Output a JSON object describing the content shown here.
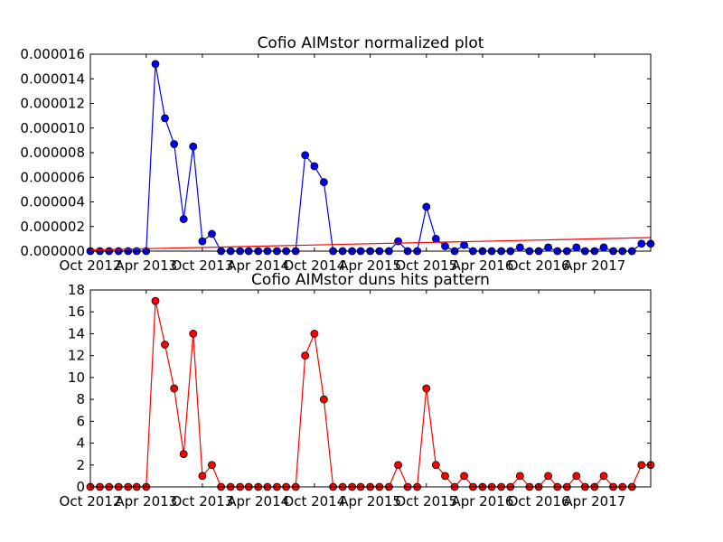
{
  "chart_data": [
    {
      "type": "line",
      "title": "Cofio AIMstor normalized plot",
      "xlabel": "",
      "ylabel": "",
      "x": [
        "2012-10-01",
        "2012-11-01",
        "2012-12-01",
        "2013-01-01",
        "2013-02-01",
        "2013-03-01",
        "2013-04-01",
        "2013-05-01",
        "2013-06-01",
        "2013-07-01",
        "2013-08-01",
        "2013-09-01",
        "2013-10-01",
        "2013-11-01",
        "2013-12-01",
        "2014-01-01",
        "2014-02-01",
        "2014-03-01",
        "2014-04-01",
        "2014-05-01",
        "2014-06-01",
        "2014-07-01",
        "2014-08-01",
        "2014-09-01",
        "2014-10-01",
        "2014-11-01",
        "2014-12-01",
        "2015-01-01",
        "2015-02-01",
        "2015-03-01",
        "2015-04-01",
        "2015-05-01",
        "2015-06-01",
        "2015-07-01",
        "2015-08-01",
        "2015-09-01",
        "2015-10-01",
        "2015-11-01",
        "2015-12-01",
        "2016-01-01",
        "2016-02-01",
        "2016-03-01",
        "2016-04-01",
        "2016-05-01",
        "2016-06-01",
        "2016-07-01",
        "2016-08-01",
        "2016-09-01",
        "2016-10-01",
        "2016-11-01",
        "2016-12-01",
        "2017-01-01",
        "2017-02-01",
        "2017-03-01",
        "2017-04-01",
        "2017-05-01",
        "2017-06-01",
        "2017-07-01",
        "2017-08-01",
        "2017-09-01",
        "2017-10-01"
      ],
      "xlim": [
        "2012-10-01",
        "2017-10-01"
      ],
      "ylim": [
        0,
        1.6e-05
      ],
      "y_ticks": [
        "0.000000",
        "0.000002",
        "0.000004",
        "0.000006",
        "0.000008",
        "0.000010",
        "0.000012",
        "0.000014",
        "0.000016"
      ],
      "x_ticks": [
        {
          "date": "2012-10-01",
          "label": "Oct 2012"
        },
        {
          "date": "2013-04-01",
          "label": "Apr 2013"
        },
        {
          "date": "2013-10-01",
          "label": "Oct 2013"
        },
        {
          "date": "2014-04-01",
          "label": "Apr 2014"
        },
        {
          "date": "2014-10-01",
          "label": "Oct 2014"
        },
        {
          "date": "2015-04-01",
          "label": "Apr 2015"
        },
        {
          "date": "2015-10-01",
          "label": "Oct 2015"
        },
        {
          "date": "2016-04-01",
          "label": "Apr 2016"
        },
        {
          "date": "2016-10-01",
          "label": "Oct 2016"
        },
        {
          "date": "2017-04-01",
          "label": "Apr 2017"
        }
      ],
      "grid": false,
      "series": [
        {
          "color": "#0000ff",
          "marker": "circle",
          "values": [
            0,
            0,
            0,
            0,
            0,
            0,
            0,
            1.52e-05,
            1.08e-05,
            8.7e-06,
            2.6e-06,
            8.5e-06,
            8e-07,
            1.4e-06,
            0,
            0,
            0,
            0,
            0,
            0,
            0,
            0,
            0,
            7.8e-06,
            6.9e-06,
            5.6e-06,
            0,
            0,
            0,
            0,
            0,
            0,
            0,
            8e-07,
            0,
            0,
            3.6e-06,
            1e-06,
            4e-07,
            0,
            5e-07,
            0,
            0,
            0,
            0,
            0,
            3e-07,
            0,
            0,
            3e-07,
            0,
            0,
            3e-07,
            0,
            0,
            3e-07,
            0,
            0,
            0,
            6e-07,
            6e-07
          ]
        },
        {
          "color": "#ff0000",
          "marker": "none",
          "trend": true,
          "values_at_xlim": [
            1e-07,
            1.1e-06
          ]
        }
      ]
    },
    {
      "type": "line",
      "title": "Cofio AIMstor duns hits pattern",
      "xlabel": "",
      "ylabel": "",
      "x": [
        "2012-10-01",
        "2012-11-01",
        "2012-12-01",
        "2013-01-01",
        "2013-02-01",
        "2013-03-01",
        "2013-04-01",
        "2013-05-01",
        "2013-06-01",
        "2013-07-01",
        "2013-08-01",
        "2013-09-01",
        "2013-10-01",
        "2013-11-01",
        "2013-12-01",
        "2014-01-01",
        "2014-02-01",
        "2014-03-01",
        "2014-04-01",
        "2014-05-01",
        "2014-06-01",
        "2014-07-01",
        "2014-08-01",
        "2014-09-01",
        "2014-10-01",
        "2014-11-01",
        "2014-12-01",
        "2015-01-01",
        "2015-02-01",
        "2015-03-01",
        "2015-04-01",
        "2015-05-01",
        "2015-06-01",
        "2015-07-01",
        "2015-08-01",
        "2015-09-01",
        "2015-10-01",
        "2015-11-01",
        "2015-12-01",
        "2016-01-01",
        "2016-02-01",
        "2016-03-01",
        "2016-04-01",
        "2016-05-01",
        "2016-06-01",
        "2016-07-01",
        "2016-08-01",
        "2016-09-01",
        "2016-10-01",
        "2016-11-01",
        "2016-12-01",
        "2017-01-01",
        "2017-02-01",
        "2017-03-01",
        "2017-04-01",
        "2017-05-01",
        "2017-06-01",
        "2017-07-01",
        "2017-08-01",
        "2017-09-01",
        "2017-10-01"
      ],
      "xlim": [
        "2012-10-01",
        "2017-10-01"
      ],
      "ylim": [
        0,
        18
      ],
      "y_ticks": [
        "0",
        "2",
        "4",
        "6",
        "8",
        "10",
        "12",
        "14",
        "16",
        "18"
      ],
      "x_ticks": [
        {
          "date": "2012-10-01",
          "label": "Oct 2012"
        },
        {
          "date": "2013-04-01",
          "label": "Apr 2013"
        },
        {
          "date": "2013-10-01",
          "label": "Oct 2013"
        },
        {
          "date": "2014-04-01",
          "label": "Apr 2014"
        },
        {
          "date": "2014-10-01",
          "label": "Oct 2014"
        },
        {
          "date": "2015-04-01",
          "label": "Apr 2015"
        },
        {
          "date": "2015-10-01",
          "label": "Oct 2015"
        },
        {
          "date": "2016-04-01",
          "label": "Apr 2016"
        },
        {
          "date": "2016-10-01",
          "label": "Oct 2016"
        },
        {
          "date": "2017-04-01",
          "label": "Apr 2017"
        }
      ],
      "grid": false,
      "series": [
        {
          "color": "#ff0000",
          "marker": "circle",
          "values": [
            0,
            0,
            0,
            0,
            0,
            0,
            0,
            17,
            13,
            9,
            3,
            14,
            1,
            2,
            0,
            0,
            0,
            0,
            0,
            0,
            0,
            0,
            0,
            12,
            14,
            8,
            0,
            0,
            0,
            0,
            0,
            0,
            0,
            2,
            0,
            0,
            9,
            2,
            1,
            0,
            1,
            0,
            0,
            0,
            0,
            0,
            1,
            0,
            0,
            1,
            0,
            0,
            1,
            0,
            0,
            1,
            0,
            0,
            0,
            2,
            2
          ]
        }
      ]
    }
  ]
}
